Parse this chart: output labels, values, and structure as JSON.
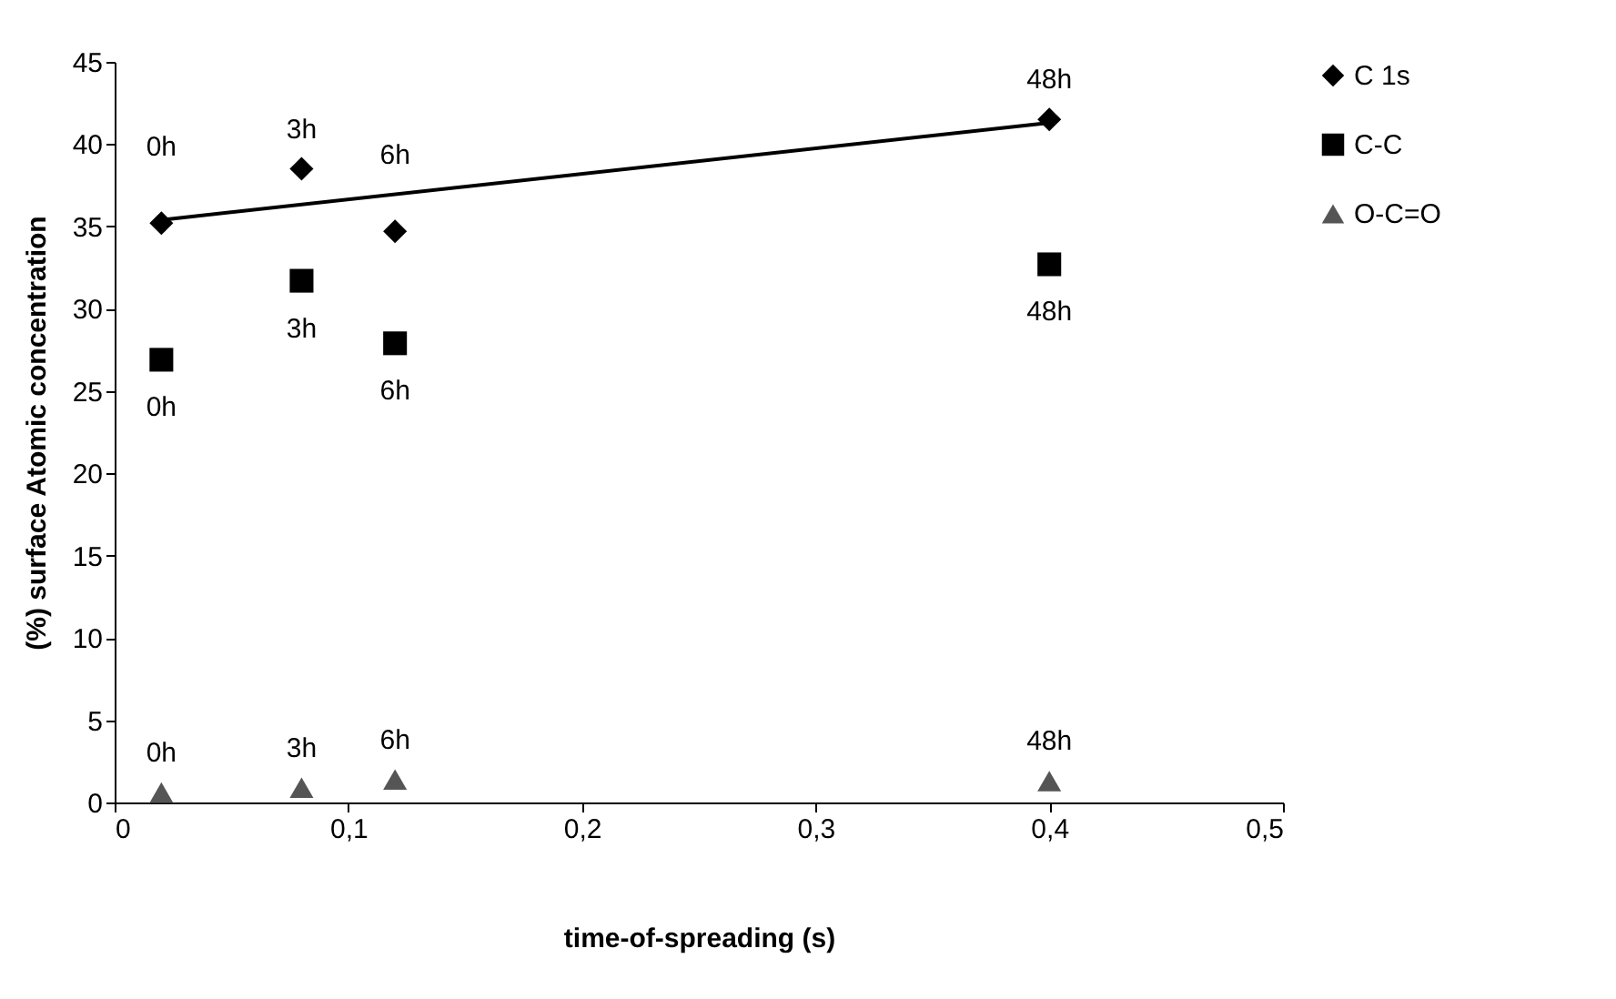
{
  "chart_data": {
    "type": "scatter",
    "xlabel": "time-of-spreading (s)",
    "ylabel": "(%) surface Atomic concentration",
    "x": [
      0.02,
      0.08,
      0.12,
      0.4
    ],
    "series": [
      {
        "name": "C 1s",
        "color": "#000000",
        "marker": "diamond",
        "values": [
          35.2,
          38.5,
          34.7,
          41.5
        ]
      },
      {
        "name": "C-C",
        "color": "#000000",
        "marker": "square",
        "values": [
          26.9,
          31.7,
          27.9,
          32.7
        ]
      },
      {
        "name": "O-C=O",
        "color": "#555555",
        "marker": "triangle",
        "values": [
          0.6,
          0.9,
          1.4,
          1.3
        ]
      },
      {
        "type": "line",
        "color": "#000000",
        "x": [
          0.02,
          0.4
        ],
        "values": [
          35.4,
          41.3
        ]
      }
    ],
    "annotations": [
      {
        "text": "0h",
        "x": 0.02,
        "y": 35.2
      },
      {
        "text": "3h",
        "x": 0.08,
        "y": 38.5
      },
      {
        "text": "6h",
        "x": 0.12,
        "y": 34.7
      },
      {
        "text": "48h",
        "x": 0.4,
        "y": 41.5
      },
      {
        "text": "0h",
        "x": 0.02,
        "y": 26.9
      },
      {
        "text": "3h",
        "x": 0.08,
        "y": 31.7
      },
      {
        "text": "6h",
        "x": 0.12,
        "y": 27.9
      },
      {
        "text": "48h",
        "x": 0.4,
        "y": 32.7
      },
      {
        "text": "0h",
        "x": 0.02,
        "y": 0.6
      },
      {
        "text": "3h",
        "x": 0.08,
        "y": 0.9
      },
      {
        "text": "6h",
        "x": 0.12,
        "y": 1.4
      },
      {
        "text": "48h",
        "x": 0.4,
        "y": 1.3
      }
    ],
    "xlim": [
      0,
      0.5
    ],
    "xticks": [
      0,
      {
        "value": 0.1,
        "label": "0,1"
      },
      {
        "value": 0.2,
        "label": "0,2"
      },
      {
        "value": 0.3,
        "label": "0,3"
      },
      {
        "value": 0.4,
        "label": "0,4"
      },
      {
        "value": 0.5,
        "label": "0,5"
      }
    ],
    "ylim": [
      0,
      45
    ],
    "yticks": [
      0,
      5,
      10,
      15,
      20,
      25,
      30,
      35,
      40,
      45
    ],
    "grid": false,
    "legend": "right"
  }
}
